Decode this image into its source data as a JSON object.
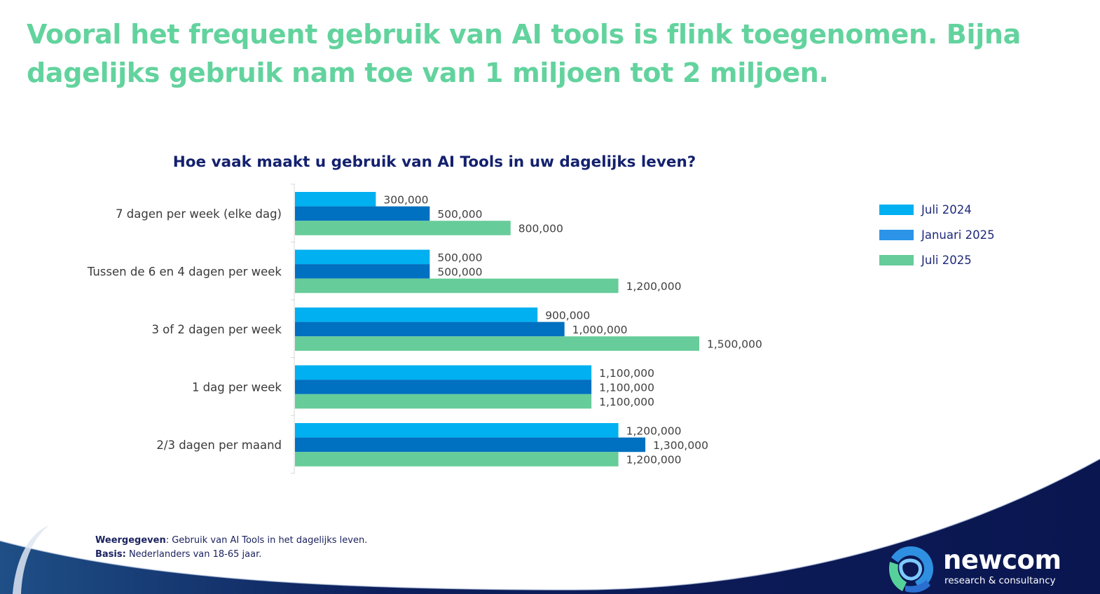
{
  "headline": "Vooral het frequent gebruik van AI tools is flink toegenomen. Bijna dagelijks gebruik nam toe van 1 miljoen tot 2 miljoen.",
  "chart_data": {
    "type": "bar",
    "orientation": "horizontal",
    "title": "Hoe vaak maakt u gebruik van AI Tools in uw dagelijks leven?",
    "categories": [
      "7 dagen per week (elke dag)",
      "Tussen de 6 en 4 dagen per week",
      "3 of 2 dagen per week",
      "1 dag per week",
      "2/3 dagen per maand"
    ],
    "series": [
      {
        "name": "Juli 2024",
        "color": "#00b0f0",
        "values": [
          300000,
          500000,
          900000,
          1100000,
          1200000
        ],
        "labels": [
          "300,000",
          "500,000",
          "900,000",
          "1,100,000",
          "1,200,000"
        ]
      },
      {
        "name": "Januari 2025",
        "color": "#0070c0",
        "legend_color": "#2b93e8",
        "values": [
          500000,
          500000,
          1000000,
          1100000,
          1300000
        ],
        "labels": [
          "500,000",
          "500,000",
          "1,000,000",
          "1,100,000",
          "1,300,000"
        ]
      },
      {
        "name": "Juli 2025",
        "color": "#66cc99",
        "values": [
          800000,
          1200000,
          1500000,
          1100000,
          1200000
        ],
        "labels": [
          "800,000",
          "1,200,000",
          "1,500,000",
          "1,100,000",
          "1,200,000"
        ]
      }
    ],
    "xlim": [
      0,
      2000000
    ],
    "grid": false,
    "legend_position": "right",
    "xlabel": "",
    "ylabel": ""
  },
  "footnote": {
    "shown_label": "Weergegeven",
    "shown_text": ": Gebruik van AI Tools in het dagelijks leven.",
    "basis_label": "Basis:",
    "basis_text": " Nederlanders van 18-65 jaar."
  },
  "logo": {
    "name": "newcom",
    "tagline": "research & consultancy"
  },
  "colors": {
    "headline": "#63d39e",
    "chart_title": "#14216e",
    "wave_dark": "#0a1650"
  }
}
